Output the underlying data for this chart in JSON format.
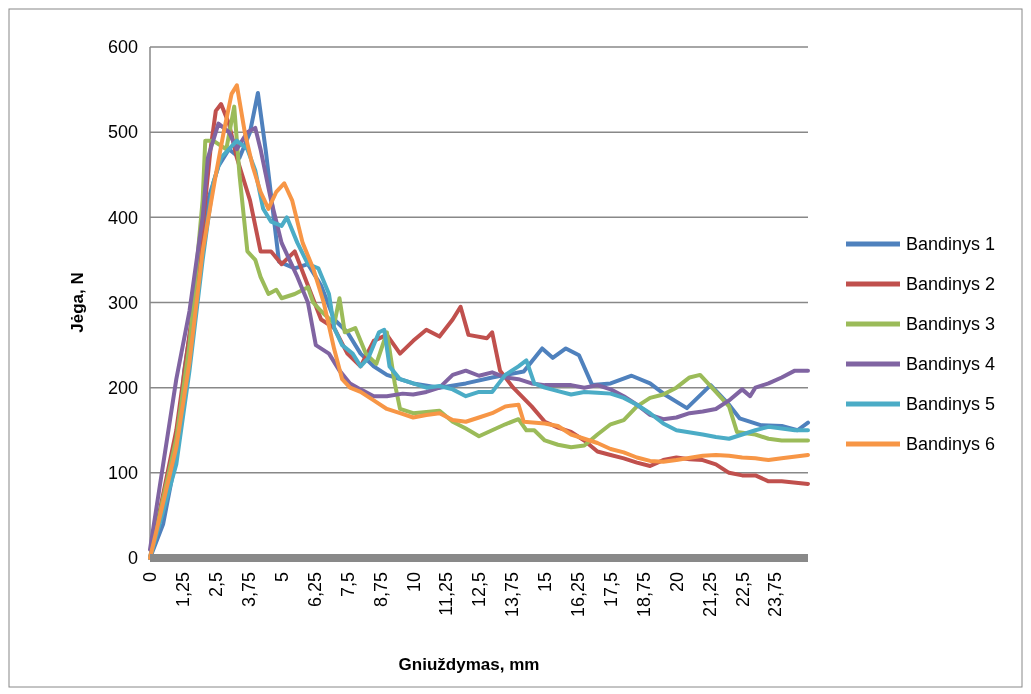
{
  "chart_data": {
    "type": "line",
    "xlabel": "Gniuždymas, mm",
    "ylabel": "Jėga, N",
    "xlim": [
      0,
      25
    ],
    "ylim": [
      0,
      600
    ],
    "yticks": [
      0,
      100,
      200,
      300,
      400,
      500,
      600
    ],
    "xticks": [
      0,
      {
        "value": 1.25,
        "label": "1,25"
      },
      {
        "value": 2.5,
        "label": "2,5"
      },
      {
        "value": 3.75,
        "label": "3,75"
      },
      5,
      {
        "value": 6.25,
        "label": "6,25"
      },
      {
        "value": 7.5,
        "label": "7,5"
      },
      {
        "value": 8.75,
        "label": "8,75"
      },
      10,
      {
        "value": 11.25,
        "label": "11,25"
      },
      {
        "value": 12.5,
        "label": "12,5"
      },
      {
        "value": 13.75,
        "label": "13,75"
      },
      15,
      {
        "value": 16.25,
        "label": "16,25"
      },
      {
        "value": 17.5,
        "label": "17,5"
      },
      {
        "value": 18.75,
        "label": "18,75"
      },
      20,
      {
        "value": 21.25,
        "label": "21,25"
      },
      {
        "value": 22.5,
        "label": "22,5"
      },
      {
        "value": 23.75,
        "label": "23,75"
      }
    ],
    "grid": "y",
    "legend": "right",
    "marker": "none",
    "line_style": "solid",
    "series": [
      {
        "name": "Bandinys 1",
        "color": "#4f81bd",
        "x": [
          0,
          0.5,
          1,
          1.3,
          1.8,
          2.2,
          2.6,
          3,
          3.4,
          3.8,
          4.1,
          4.4,
          4.9,
          5.5,
          6,
          6.5,
          7,
          7.5,
          8,
          8.5,
          9,
          9.5,
          10,
          11,
          12,
          13,
          14.2,
          14.9,
          15.3,
          15.8,
          16.3,
          16.8,
          17.5,
          18.3,
          19,
          19.6,
          20.4,
          21.3,
          22,
          22.4,
          23.2,
          24,
          24.6,
          25
        ],
        "values": [
          0,
          40,
          120,
          220,
          320,
          420,
          460,
          480,
          470,
          500,
          546,
          478,
          348,
          340,
          345,
          320,
          280,
          265,
          240,
          225,
          215,
          210,
          205,
          200,
          205,
          212,
          219,
          246,
          235,
          246,
          238,
          203,
          205,
          214,
          205,
          191,
          176,
          203,
          180,
          164,
          156,
          155,
          150,
          159
        ]
      },
      {
        "name": "Bandinys 2",
        "color": "#c0504d",
        "x": [
          0,
          1,
          1.8,
          2.3,
          2.5,
          2.7,
          3,
          3.3,
          3.8,
          4.2,
          4.6,
          5,
          5.5,
          6,
          6.5,
          7,
          7.5,
          8,
          8.5,
          9,
          9.5,
          10,
          10.5,
          11,
          11.5,
          11.8,
          12.1,
          12.8,
          13,
          13.3,
          13.8,
          14.5,
          15,
          15.5,
          16,
          16.5,
          17,
          17.5,
          18,
          18.5,
          19,
          19.5,
          20,
          20.5,
          21,
          21.5,
          22,
          22.5,
          23,
          23.5,
          24,
          25
        ],
        "values": [
          0,
          150,
          330,
          480,
          525,
          533,
          510,
          470,
          420,
          360,
          360,
          345,
          360,
          320,
          280,
          270,
          240,
          225,
          255,
          262,
          240,
          255,
          268,
          260,
          280,
          295,
          262,
          258,
          265,
          220,
          200,
          178,
          160,
          153,
          148,
          138,
          125,
          121,
          117,
          112,
          108,
          115,
          118,
          116,
          115,
          110,
          100,
          97,
          97,
          90,
          90,
          87
        ]
      },
      {
        "name": "Bandinys 3",
        "color": "#9bbb59",
        "x": [
          0,
          1,
          1.5,
          2,
          2.1,
          2.4,
          2.9,
          3.2,
          3.4,
          3.7,
          4,
          4.2,
          4.5,
          4.8,
          5,
          5.5,
          6,
          6.2,
          6.5,
          7,
          7.2,
          7.4,
          7.8,
          8.2,
          8.6,
          9,
          9.3,
          9.5,
          10,
          11,
          11.5,
          12,
          12.5,
          13,
          13.5,
          14,
          14.3,
          14.6,
          15,
          15.5,
          16,
          16.5,
          17,
          17.5,
          18,
          18.5,
          19,
          19.5,
          20,
          20.5,
          20.9,
          21.5,
          22,
          22.3,
          23,
          23.5,
          24,
          25
        ],
        "values": [
          0,
          140,
          250,
          420,
          490,
          490,
          480,
          530,
          450,
          360,
          350,
          330,
          310,
          315,
          305,
          310,
          318,
          300,
          290,
          275,
          305,
          265,
          270,
          240,
          228,
          265,
          205,
          175,
          170,
          173,
          160,
          152,
          143,
          150,
          157,
          163,
          150,
          150,
          138,
          133,
          130,
          132,
          145,
          157,
          162,
          178,
          188,
          192,
          200,
          212,
          215,
          195,
          178,
          148,
          145,
          140,
          138,
          138
        ]
      },
      {
        "name": "Bandinys 4",
        "color": "#8064a2",
        "x": [
          0,
          1,
          1.5,
          2,
          2.2,
          2.6,
          3,
          3.3,
          3.7,
          4,
          4.2,
          4.6,
          5,
          5.3,
          5.6,
          6,
          6.3,
          6.8,
          7.2,
          7.6,
          8,
          8.5,
          9,
          9.6,
          10,
          10.5,
          11,
          11.5,
          12,
          12.5,
          13,
          13.5,
          14,
          14.5,
          15,
          16,
          16.5,
          17,
          17.5,
          18,
          18.5,
          19,
          19.5,
          20,
          20.5,
          21,
          21.5,
          22,
          22.5,
          22.8,
          23,
          23.5,
          24,
          24.5,
          25
        ],
        "values": [
          10,
          210,
          290,
          400,
          470,
          510,
          500,
          480,
          500,
          505,
          480,
          420,
          370,
          350,
          330,
          300,
          250,
          240,
          220,
          205,
          198,
          190,
          190,
          193,
          192,
          195,
          200,
          215,
          220,
          214,
          218,
          212,
          210,
          205,
          203,
          203,
          200,
          203,
          198,
          190,
          180,
          168,
          163,
          165,
          170,
          172,
          175,
          185,
          198,
          190,
          200,
          205,
          212,
          220,
          220
        ]
      },
      {
        "name": "Bandinys 5",
        "color": "#4bacc6",
        "x": [
          0,
          1,
          1.5,
          2,
          2.4,
          2.7,
          3,
          3.3,
          3.7,
          4,
          4.3,
          4.6,
          5,
          5.2,
          5.6,
          6,
          6.4,
          6.8,
          7,
          7.3,
          7.7,
          8,
          8.3,
          8.7,
          8.9,
          9.1,
          9.5,
          10,
          10.5,
          11,
          11.5,
          12,
          12.5,
          13,
          13.5,
          14,
          14.3,
          14.6,
          15,
          15.5,
          16,
          16.5,
          17,
          17.5,
          18,
          18.5,
          19,
          19.5,
          20,
          21,
          21.5,
          22,
          22.5,
          23,
          23.5,
          24,
          24.5,
          25
        ],
        "values": [
          0,
          110,
          220,
          350,
          440,
          470,
          480,
          490,
          480,
          455,
          410,
          395,
          390,
          400,
          370,
          345,
          340,
          310,
          270,
          250,
          240,
          225,
          235,
          265,
          268,
          225,
          210,
          205,
          200,
          202,
          198,
          190,
          195,
          195,
          215,
          225,
          232,
          205,
          200,
          196,
          192,
          195,
          194,
          193,
          188,
          180,
          170,
          158,
          150,
          145,
          142,
          140,
          145,
          150,
          154,
          152,
          150,
          150
        ]
      },
      {
        "name": "Bandinys 6",
        "color": "#f79646",
        "x": [
          0,
          1,
          1.5,
          2,
          2.5,
          2.8,
          3.1,
          3.3,
          3.6,
          3.9,
          4.2,
          4.5,
          4.8,
          5.1,
          5.4,
          5.8,
          6.2,
          6.6,
          7,
          7.3,
          7.6,
          8,
          8.5,
          9,
          9.5,
          10,
          10.5,
          11,
          11.5,
          12,
          12.5,
          13,
          13.5,
          14,
          14.2,
          15,
          15.5,
          16,
          16.5,
          17,
          17.5,
          18,
          18.5,
          19,
          19.5,
          20,
          21,
          21.5,
          22,
          22.5,
          23,
          23.5,
          24,
          25
        ],
        "values": [
          0,
          130,
          230,
          360,
          450,
          500,
          545,
          555,
          500,
          460,
          430,
          410,
          430,
          440,
          420,
          370,
          340,
          300,
          245,
          210,
          200,
          195,
          185,
          175,
          170,
          165,
          168,
          170,
          162,
          160,
          165,
          170,
          178,
          180,
          160,
          158,
          155,
          145,
          140,
          135,
          128,
          124,
          118,
          114,
          113,
          115,
          120,
          121,
          120,
          118,
          117,
          115,
          117,
          121
        ]
      }
    ]
  }
}
